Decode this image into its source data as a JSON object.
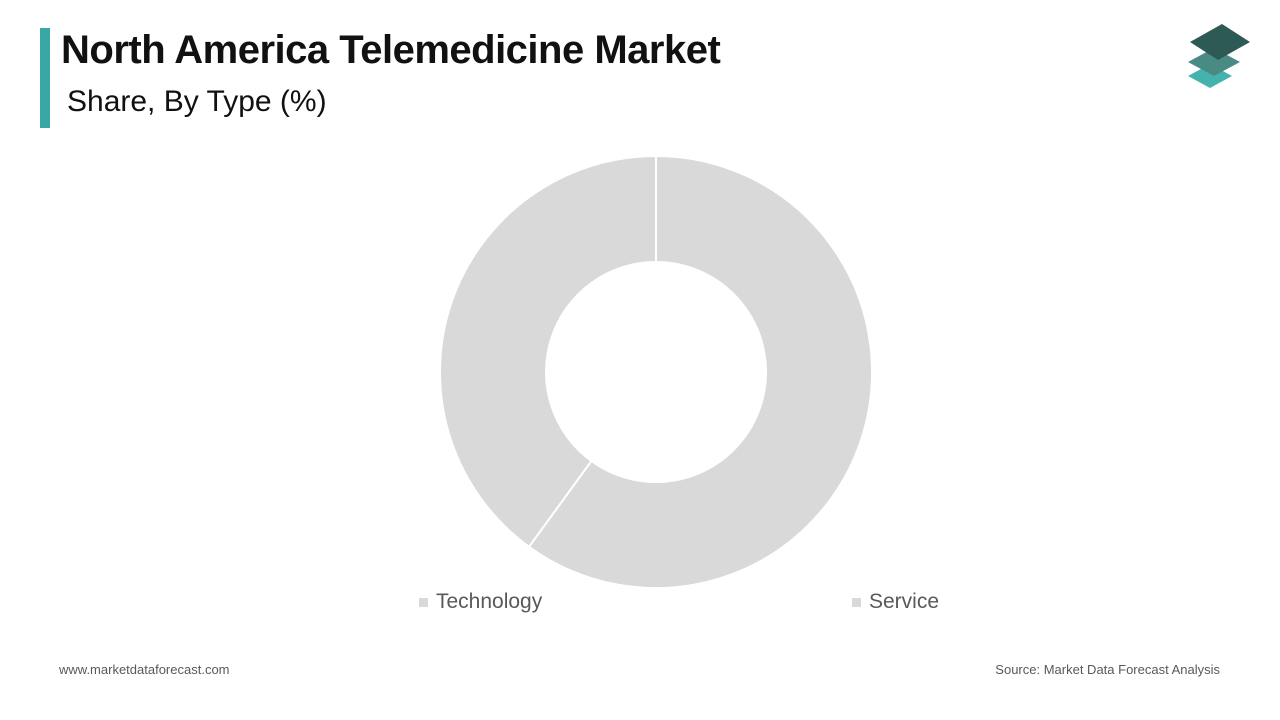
{
  "header": {
    "title": "North America Telemedicine Market",
    "subtitle": "Share, By Type (%)"
  },
  "colors": {
    "accent": "#3aa7a4",
    "slice_fill": "#d9d9d9",
    "slice_border": "#ffffff",
    "logo_dark": "#2e5a56",
    "logo_mid": "#4a8a85",
    "logo_light": "#45b3ad"
  },
  "logo": {
    "icon": "stacked-layers-logo-icon"
  },
  "chart_data": {
    "type": "pie",
    "donut": true,
    "categories": [
      "Technology",
      "Service"
    ],
    "values": [
      40,
      60
    ],
    "legend_position": "bottom",
    "data_labels": false
  },
  "legend": {
    "items": [
      "Technology",
      "Service"
    ]
  },
  "footer": {
    "website": "www.marketdataforecast.com",
    "source": "Source: Market Data Forecast Analysis"
  }
}
